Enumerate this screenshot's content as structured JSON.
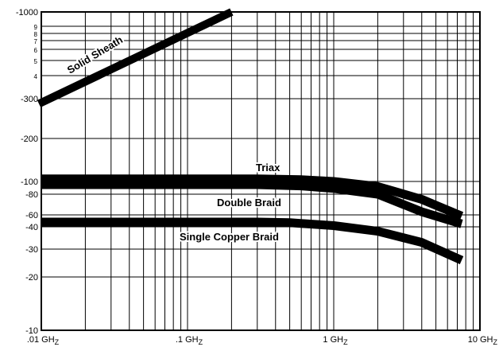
{
  "chart_data": {
    "type": "line",
    "title": "",
    "xlabel": "",
    "ylabel": "",
    "x_scale": "log",
    "x_range": [
      0.01,
      10
    ],
    "grid": true,
    "legend": "none (series labelled inline)",
    "x_tick_labels": [
      {
        "value": 0.01,
        "base": ".01 GH",
        "sub": "Z"
      },
      {
        "value": 0.1,
        "base": ".1 GH",
        "sub": "Z"
      },
      {
        "value": 1,
        "base": "1 GH",
        "sub": "Z"
      },
      {
        "value": 10,
        "base": "10 GH",
        "sub": "Z"
      }
    ],
    "y_tick_labels": [
      {
        "label": "-1000",
        "small": false
      },
      {
        "label": "9",
        "small": true
      },
      {
        "label": "8",
        "small": true
      },
      {
        "label": "7",
        "small": true
      },
      {
        "label": "6",
        "small": true
      },
      {
        "label": "5",
        "small": true
      },
      {
        "label": "4",
        "small": true
      },
      {
        "label": "-300",
        "small": false
      },
      {
        "label": "-200",
        "small": false
      },
      {
        "label": "-100",
        "small": false
      },
      {
        "label": "-80",
        "small": false
      },
      {
        "label": "-60",
        "small": false
      },
      {
        "label": "-40",
        "small": false
      },
      {
        "label": "-30",
        "small": false
      },
      {
        "label": "-20",
        "small": false
      },
      {
        "label": "-10",
        "small": false
      }
    ],
    "series": [
      {
        "name": "Solid Sheath",
        "x": [
          0.01,
          0.2
        ],
        "y": [
          -290,
          -1000
        ]
      },
      {
        "name": "Triax",
        "x": [
          0.01,
          0.05,
          0.1,
          0.3,
          0.6,
          1,
          2,
          4,
          7.5
        ],
        "y": [
          -106,
          -106,
          -106,
          -106,
          -104,
          -100,
          -92,
          -75,
          -58
        ]
      },
      {
        "name": "Double Braid",
        "x": [
          0.01,
          0.05,
          0.1,
          0.3,
          0.6,
          1,
          2,
          4,
          7.5
        ],
        "y": [
          -95,
          -95,
          -95,
          -95,
          -93,
          -89,
          -80,
          -63,
          -45
        ]
      },
      {
        "name": "Single Copper Braid",
        "x": [
          0.01,
          0.05,
          0.1,
          0.3,
          0.5,
          1,
          2,
          4,
          7.5
        ],
        "y": [
          -48,
          -48,
          -48,
          -48,
          -47,
          -42,
          -38,
          -33,
          -26
        ]
      }
    ]
  }
}
